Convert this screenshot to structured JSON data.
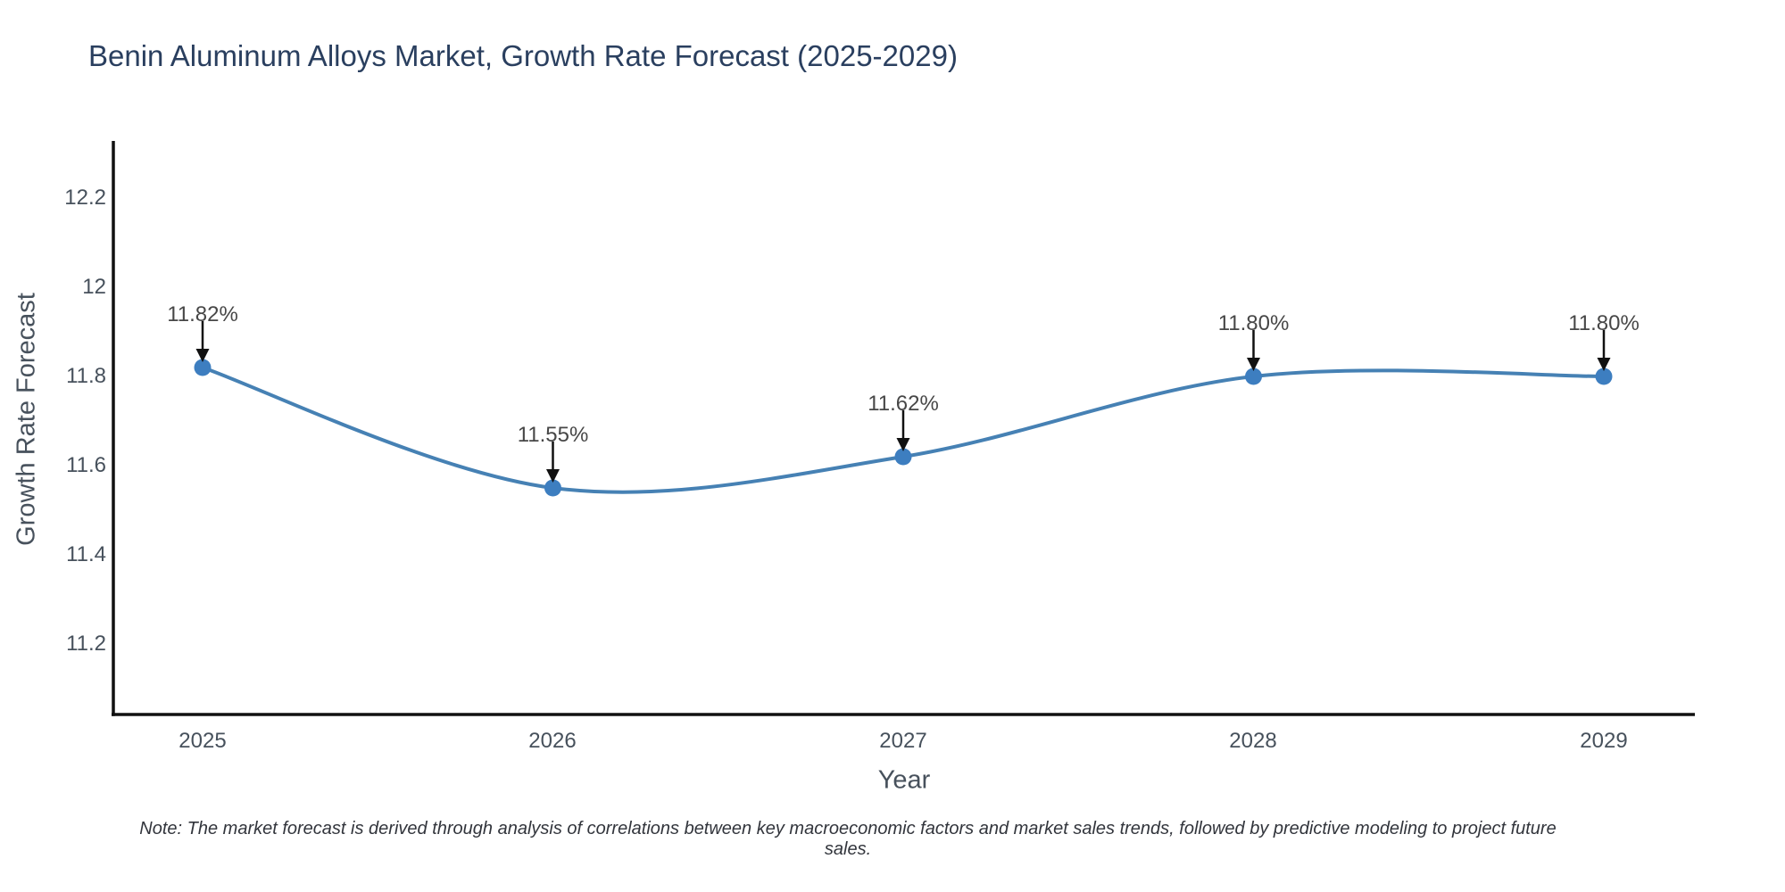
{
  "note": {
    "text": "Note: The market forecast is derived through analysis of correlations between key macroeconomic factors and market sales trends, followed by predictive modeling to project future sales."
  },
  "chart_data": {
    "type": "line",
    "title": "Benin Aluminum Alloys Market, Growth Rate Forecast (2025-2029)",
    "xlabel": "Year",
    "ylabel": "Growth Rate Forecast",
    "categories": [
      2025,
      2026,
      2027,
      2028,
      2029
    ],
    "values": [
      11.82,
      11.55,
      11.62,
      11.8,
      11.8
    ],
    "point_labels": [
      "11.82%",
      "11.55%",
      "11.62%",
      "11.80%",
      "11.80%"
    ],
    "y_ticks": [
      "12.2",
      "12",
      "11.8",
      "11.6",
      "11.4",
      "11.2"
    ],
    "ylim": [
      11.04,
      12.32
    ],
    "line_shape": "spline",
    "grid": false,
    "legend": "none",
    "colors": {
      "line": "#4681b4",
      "marker": "#3d7ec0",
      "arrow": "#111111",
      "axis": "#111111",
      "title_text": "#2a3f5f"
    }
  }
}
